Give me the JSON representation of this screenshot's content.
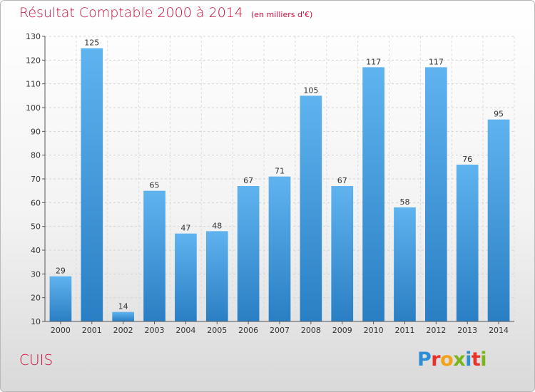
{
  "title": "Résultat Comptable 2000 à 2014",
  "subtitle": "(en milliers d'€)",
  "commune": "CUIS",
  "logo": {
    "text": "Proxiti",
    "letter_colors": [
      "#2b8fd6",
      "#e8332a",
      "#f4a11a",
      "#7ab51d",
      "#2b8fd6",
      "#e8332a",
      "#7ab51d"
    ]
  },
  "colors": {
    "bar_light": "#5fb3ef",
    "bar_dark": "#2a7fc4",
    "title": "#c8103c"
  },
  "chart_data": {
    "type": "bar",
    "categories": [
      "2000",
      "2001",
      "2002",
      "2003",
      "2004",
      "2005",
      "2006",
      "2007",
      "2008",
      "2009",
      "2010",
      "2011",
      "2012",
      "2013",
      "2014"
    ],
    "values": [
      29,
      125,
      14,
      65,
      47,
      48,
      67,
      71,
      105,
      67,
      117,
      58,
      117,
      76,
      95
    ],
    "title": "Résultat Comptable 2000 à 2014",
    "xlabel": "",
    "ylabel": "",
    "ylim": [
      10,
      130
    ],
    "yticks": [
      10,
      20,
      30,
      40,
      50,
      60,
      70,
      80,
      90,
      100,
      110,
      120,
      130
    ],
    "grid": true,
    "legend": "none"
  }
}
